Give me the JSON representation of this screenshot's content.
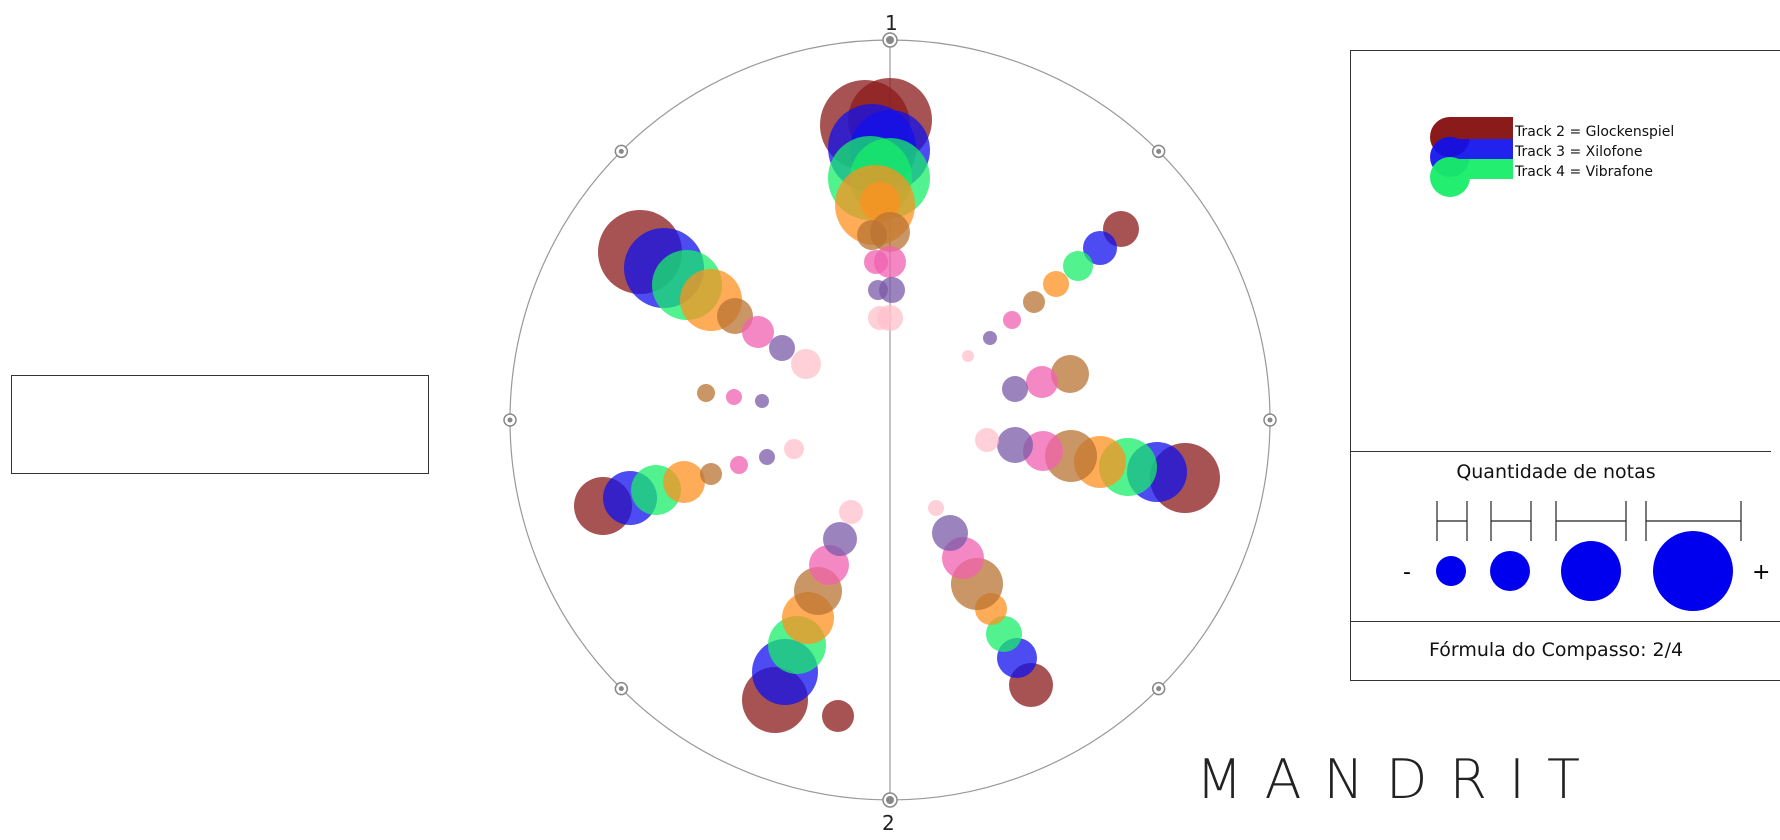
{
  "circle": {
    "top_label": "1",
    "bottom_label": "2"
  },
  "legend": {
    "tracks": [
      {
        "label": "Track 2 = Glockenspiel",
        "color": "#8b1a1a"
      },
      {
        "label": "Track 3 = Xilofone",
        "color": "#1010ee"
      },
      {
        "label": "Track 4 = Vibrafone",
        "color": "#18ee68"
      }
    ]
  },
  "note_quantity": {
    "title": "Quantidade de notas",
    "minus": "-",
    "plus": "+",
    "sample_color": "#0000ee"
  },
  "time_signature": "Fórmula do Compasso: 2/4",
  "brand": "MANDRIT",
  "colors": {
    "brown_red": "#8b1a1a",
    "blue": "#1010ee",
    "green": "#18ee68",
    "orange": "#ff9020",
    "tan": "#b87333",
    "pink": "#f060b0",
    "purple": "#7a5aa8",
    "light_pink": "#ffc0cb"
  }
}
